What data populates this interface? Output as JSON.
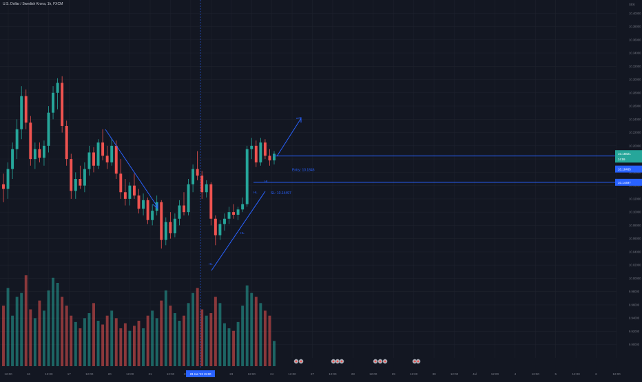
{
  "header": {
    "symbol_title": "U.S. Dollar / Swedish Krona, 1h, FXCM",
    "currency": "SEK"
  },
  "colors": {
    "background": "#131722",
    "grid": "#1e222d",
    "up": "#26a69a",
    "down": "#ef5350",
    "volume_up": "#26a69a",
    "volume_down": "#ef5350",
    "drawing": "#2962ff",
    "axis_text": "#787b86",
    "text": "#d1d4dc",
    "current_price_bg": "#26a69a",
    "highlight_bg": "#2962ff"
  },
  "chart_data": {
    "type": "candlestick",
    "title": "U.S. Dollar / Swedish Krona, 1h, FXCM",
    "xlabel": "",
    "ylabel": "",
    "ylim": [
      9.88,
      10.42
    ],
    "grid": true,
    "price_axis_ticks": [
      "10.40000",
      "10.38000",
      "10.36000",
      "10.34000",
      "10.32000",
      "10.30000",
      "10.28000",
      "10.26000",
      "10.24000",
      "10.22000",
      "10.20000",
      "10.18000",
      "10.16000",
      "10.14000",
      "10.12000",
      "10.10000",
      "10.08000",
      "10.06000",
      "10.04000",
      "10.02000",
      "10.00000",
      "9.98000",
      "9.96000",
      "9.94000",
      "9.92000",
      "9.90000"
    ],
    "time_axis_labels": [
      "12:00",
      "16",
      "12:00",
      "17",
      "12:00",
      "20",
      "12:00",
      "21",
      "12:00",
      "23 Jun '22",
      "12:00",
      "23",
      "12:00",
      "24",
      "12:00",
      "27",
      "12:00",
      "28",
      "12:00",
      "29",
      "12:00",
      "30",
      "12:00",
      "Jul",
      "12:00",
      "4",
      "12:00",
      "5",
      "12:00",
      "6",
      "12:00"
    ],
    "time_axis_highlight": "23 Jun '22  15:00",
    "current_price_label": "10.18821",
    "current_price_countdown": "24:59",
    "current_price": 10.18821,
    "entry_price_label": "10.18465",
    "sl_price_label": "10.14497",
    "entry_price": 10.18465,
    "sl_price": 10.14497,
    "entry_label": "Entry: 10.1846",
    "sl_label": "SL: 10.14497",
    "pattern_labels": [
      "HL",
      "HL",
      "HL",
      "HL"
    ],
    "candles": [
      {
        "o": 10.142,
        "h": 10.158,
        "l": 10.115,
        "c": 10.135
      },
      {
        "o": 10.135,
        "h": 10.175,
        "l": 10.12,
        "c": 10.165
      },
      {
        "o": 10.165,
        "h": 10.205,
        "l": 10.15,
        "c": 10.195
      },
      {
        "o": 10.195,
        "h": 10.24,
        "l": 10.18,
        "c": 10.225
      },
      {
        "o": 10.225,
        "h": 10.29,
        "l": 10.21,
        "c": 10.275
      },
      {
        "o": 10.275,
        "h": 10.285,
        "l": 10.225,
        "c": 10.235
      },
      {
        "o": 10.235,
        "h": 10.245,
        "l": 10.17,
        "c": 10.18
      },
      {
        "o": 10.18,
        "h": 10.205,
        "l": 10.165,
        "c": 10.195
      },
      {
        "o": 10.195,
        "h": 10.205,
        "l": 10.175,
        "c": 10.182
      },
      {
        "o": 10.182,
        "h": 10.208,
        "l": 10.17,
        "c": 10.2
      },
      {
        "o": 10.2,
        "h": 10.26,
        "l": 10.19,
        "c": 10.25
      },
      {
        "o": 10.25,
        "h": 10.29,
        "l": 10.24,
        "c": 10.28
      },
      {
        "o": 10.28,
        "h": 10.302,
        "l": 10.255,
        "c": 10.295
      },
      {
        "o": 10.295,
        "h": 10.305,
        "l": 10.22,
        "c": 10.23
      },
      {
        "o": 10.23,
        "h": 10.238,
        "l": 10.17,
        "c": 10.18
      },
      {
        "o": 10.18,
        "h": 10.188,
        "l": 10.12,
        "c": 10.132
      },
      {
        "o": 10.132,
        "h": 10.16,
        "l": 10.12,
        "c": 10.15
      },
      {
        "o": 10.15,
        "h": 10.17,
        "l": 10.135,
        "c": 10.14
      },
      {
        "o": 10.14,
        "h": 10.175,
        "l": 10.13,
        "c": 10.165
      },
      {
        "o": 10.165,
        "h": 10.2,
        "l": 10.155,
        "c": 10.19
      },
      {
        "o": 10.19,
        "h": 10.198,
        "l": 10.16,
        "c": 10.17
      },
      {
        "o": 10.17,
        "h": 10.21,
        "l": 10.165,
        "c": 10.205
      },
      {
        "o": 10.205,
        "h": 10.225,
        "l": 10.178,
        "c": 10.185
      },
      {
        "o": 10.185,
        "h": 10.2,
        "l": 10.165,
        "c": 10.175
      },
      {
        "o": 10.175,
        "h": 10.212,
        "l": 10.17,
        "c": 10.2
      },
      {
        "o": 10.2,
        "h": 10.208,
        "l": 10.15,
        "c": 10.158
      },
      {
        "o": 10.158,
        "h": 10.18,
        "l": 10.12,
        "c": 10.13
      },
      {
        "o": 10.13,
        "h": 10.15,
        "l": 10.11,
        "c": 10.12
      },
      {
        "o": 10.12,
        "h": 10.145,
        "l": 10.11,
        "c": 10.14
      },
      {
        "o": 10.14,
        "h": 10.158,
        "l": 10.12,
        "c": 10.125
      },
      {
        "o": 10.125,
        "h": 10.135,
        "l": 10.098,
        "c": 10.105
      },
      {
        "o": 10.105,
        "h": 10.128,
        "l": 10.095,
        "c": 10.118
      },
      {
        "o": 10.118,
        "h": 10.122,
        "l": 10.082,
        "c": 10.088
      },
      {
        "o": 10.088,
        "h": 10.112,
        "l": 10.08,
        "c": 10.102
      },
      {
        "o": 10.102,
        "h": 10.125,
        "l": 10.095,
        "c": 10.115
      },
      {
        "o": 10.115,
        "h": 10.118,
        "l": 10.045,
        "c": 10.058
      },
      {
        "o": 10.058,
        "h": 10.092,
        "l": 10.05,
        "c": 10.085
      },
      {
        "o": 10.085,
        "h": 10.1,
        "l": 10.06,
        "c": 10.068
      },
      {
        "o": 10.068,
        "h": 10.098,
        "l": 10.062,
        "c": 10.09
      },
      {
        "o": 10.09,
        "h": 10.118,
        "l": 10.08,
        "c": 10.11
      },
      {
        "o": 10.11,
        "h": 10.13,
        "l": 10.095,
        "c": 10.1
      },
      {
        "o": 10.1,
        "h": 10.15,
        "l": 10.095,
        "c": 10.142
      },
      {
        "o": 10.142,
        "h": 10.172,
        "l": 10.13,
        "c": 10.165
      },
      {
        "o": 10.165,
        "h": 10.192,
        "l": 10.148,
        "c": 10.155
      },
      {
        "o": 10.155,
        "h": 10.162,
        "l": 10.12,
        "c": 10.13
      },
      {
        "o": 10.13,
        "h": 10.148,
        "l": 10.122,
        "c": 10.142
      },
      {
        "o": 10.142,
        "h": 10.145,
        "l": 10.08,
        "c": 10.09
      },
      {
        "o": 10.09,
        "h": 10.095,
        "l": 10.05,
        "c": 10.065
      },
      {
        "o": 10.065,
        "h": 10.088,
        "l": 10.058,
        "c": 10.082
      },
      {
        "o": 10.082,
        "h": 10.098,
        "l": 10.072,
        "c": 10.09
      },
      {
        "o": 10.09,
        "h": 10.108,
        "l": 10.082,
        "c": 10.1
      },
      {
        "o": 10.1,
        "h": 10.112,
        "l": 10.09,
        "c": 10.096
      },
      {
        "o": 10.096,
        "h": 10.108,
        "l": 10.088,
        "c": 10.104
      },
      {
        "o": 10.104,
        "h": 10.122,
        "l": 10.1,
        "c": 10.112
      },
      {
        "o": 10.112,
        "h": 10.2,
        "l": 10.108,
        "c": 10.195
      },
      {
        "o": 10.195,
        "h": 10.212,
        "l": 10.18,
        "c": 10.2
      },
      {
        "o": 10.2,
        "h": 10.208,
        "l": 10.168,
        "c": 10.175
      },
      {
        "o": 10.175,
        "h": 10.212,
        "l": 10.17,
        "c": 10.205
      },
      {
        "o": 10.205,
        "h": 10.21,
        "l": 10.18,
        "c": 10.185
      },
      {
        "o": 10.185,
        "h": 10.195,
        "l": 10.17,
        "c": 10.178
      },
      {
        "o": 10.178,
        "h": 10.192,
        "l": 10.172,
        "c": 10.188
      }
    ],
    "volumes": [
      48,
      62,
      40,
      55,
      58,
      72,
      45,
      38,
      52,
      44,
      60,
      70,
      66,
      55,
      48,
      40,
      35,
      30,
      38,
      42,
      50,
      36,
      33,
      40,
      44,
      38,
      30,
      34,
      28,
      32,
      36,
      30,
      40,
      44,
      38,
      52,
      60,
      48,
      42,
      36,
      40,
      50,
      58,
      62,
      45,
      40,
      42,
      55,
      50,
      34,
      30,
      28,
      35,
      48,
      64,
      58,
      55,
      50,
      44,
      40,
      20
    ]
  }
}
